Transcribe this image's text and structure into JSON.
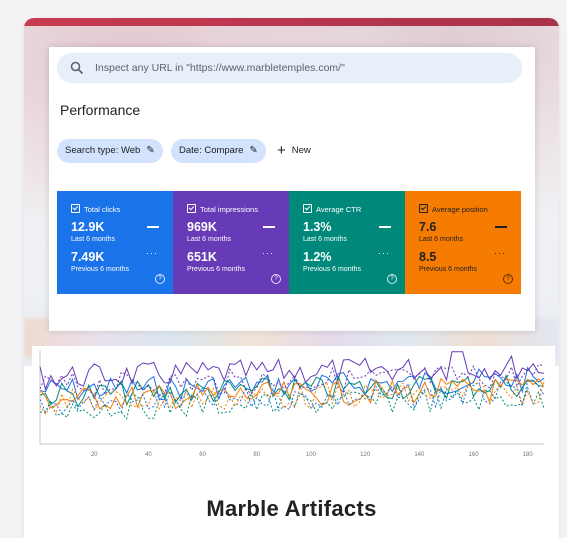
{
  "search": {
    "placeholder": "Inspect any URL in \"https://www.marbletemples.com/\"",
    "icon": "search-icon"
  },
  "page": {
    "title": "Performance"
  },
  "filters": {
    "search_type": "Search type: Web",
    "date": "Date: Compare",
    "new": "New"
  },
  "metrics": [
    {
      "label": "Total clicks",
      "current": "12.9K",
      "current_label": "Last 6 months",
      "previous": "7.49K",
      "previous_label": "Previous 6 months",
      "color": "#1a73e8"
    },
    {
      "label": "Total impressions",
      "current": "969K",
      "current_label": "Last 6 months",
      "previous": "651K",
      "previous_label": "Previous 6 months",
      "color": "#673ab7"
    },
    {
      "label": "Average CTR",
      "current": "1.3%",
      "current_label": "Last 6 months",
      "previous": "1.2%",
      "previous_label": "Previous 6 months",
      "color": "#00897b"
    },
    {
      "label": "Average position",
      "current": "7.6",
      "current_label": "Last 6 months",
      "previous": "8.5",
      "previous_label": "Previous 6 months",
      "color": "#f57c00"
    }
  ],
  "chart_data": {
    "type": "line",
    "x_ticks": [
      "20",
      "40",
      "60",
      "80",
      "100",
      "120",
      "140",
      "160",
      "180"
    ],
    "xlim": [
      0,
      186
    ],
    "grid": false,
    "series": [
      {
        "color": "#1a73e8",
        "style": "solid"
      },
      {
        "color": "#673ab7",
        "style": "solid"
      },
      {
        "color": "#00897b",
        "style": "solid"
      },
      {
        "color": "#f57c00",
        "style": "solid"
      },
      {
        "color": "#1a73e8",
        "style": "dashed"
      },
      {
        "color": "#673ab7",
        "style": "dashed"
      },
      {
        "color": "#00897b",
        "style": "dashed"
      },
      {
        "color": "#f57c00",
        "style": "dashed"
      }
    ]
  },
  "card": {
    "title": "Marble Artifacts"
  }
}
